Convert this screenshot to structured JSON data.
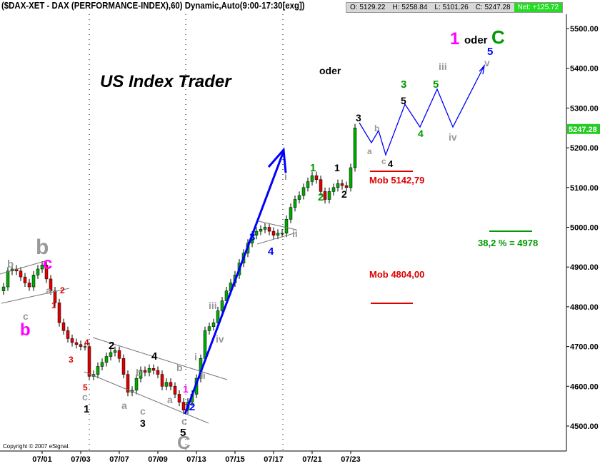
{
  "header": {
    "title": "($DAX-XET - DAX (PERFORMANCE-INDEX),60) Dynamic,Auto(9:00-17:30[exg])",
    "open": "O: 5129.22",
    "high": "H: 5258.84",
    "low": "L: 5101.26",
    "close": "C: 5247.28",
    "net": "Net: +125.72"
  },
  "copyright": "Copyright © 2007 eSignal.",
  "chart_data": {
    "type": "candlestick",
    "interval": "60 min",
    "ylim": [
      4450,
      5560
    ],
    "y_ticks": [
      "5500.00",
      "5400.00",
      "5300.00",
      "5200.00",
      "5100.00",
      "5000.00",
      "4900.00",
      "4800.00",
      "4700.00",
      "4600.00",
      "4500.00"
    ],
    "x_ticks": [
      "07/01",
      "07/03",
      "07/07",
      "07/09",
      "07/13",
      "07/15",
      "07/17",
      "07/21",
      "07/23"
    ],
    "last_price": "5247.28",
    "closes": [
      4850,
      4890,
      4895,
      4890,
      4875,
      4860,
      4850,
      4880,
      4895,
      4905,
      4870,
      4840,
      4810,
      4760,
      4740,
      4720,
      4710,
      4705,
      4700,
      4700,
      4625,
      4630,
      4650,
      4660,
      4675,
      4685,
      4690,
      4670,
      4630,
      4585,
      4590,
      4620,
      4640,
      4635,
      4645,
      4640,
      4630,
      4600,
      4610,
      4600,
      4580,
      4560,
      4540,
      4560,
      4580,
      4620,
      4670,
      4740,
      4750,
      4760,
      4790,
      4815,
      4840,
      4860,
      4880,
      4910,
      4935,
      4960,
      4980,
      4990,
      4995,
      5000,
      4990,
      4980,
      4985,
      4985,
      5020,
      5050,
      5070,
      5080,
      5100,
      5115,
      5130,
      5120,
      5090,
      5070,
      5090,
      5100,
      5110,
      5105,
      5100,
      5150,
      5250
    ],
    "colors": {
      "up": "#00aa00",
      "down": "#dd0000",
      "projection": "#0000ff",
      "mob": "#dd0000",
      "fib": "#009900"
    },
    "annotations": [
      {
        "text": "US Index Trader",
        "color": "#000000"
      },
      {
        "text": "oder",
        "color": "#000000"
      },
      {
        "text": "1",
        "color": "#ff00ff"
      },
      {
        "text": "oder",
        "color": "#000000"
      },
      {
        "text": "C",
        "color": "#009900"
      },
      {
        "text": "5",
        "color": "#0000ff"
      },
      {
        "text": "v",
        "color": "#999999"
      },
      {
        "text": "iii",
        "color": "#999999"
      },
      {
        "text": "3",
        "color": "#009900"
      },
      {
        "text": "5",
        "color": "#000000"
      },
      {
        "text": "5",
        "color": "#009900"
      },
      {
        "text": "4",
        "color": "#009900"
      },
      {
        "text": "iv",
        "color": "#999999"
      },
      {
        "text": "3",
        "color": "#000000"
      },
      {
        "text": "a",
        "color": "#999999"
      },
      {
        "text": "b",
        "color": "#999999"
      },
      {
        "text": "c",
        "color": "#999999"
      },
      {
        "text": "4",
        "color": "#000000"
      },
      {
        "text": "Mob 5142,79",
        "color": "#dd0000"
      },
      {
        "text": "1",
        "color": "#009900"
      },
      {
        "text": "2",
        "color": "#009900"
      },
      {
        "text": "1",
        "color": "#000000"
      },
      {
        "text": "2",
        "color": "#000000"
      },
      {
        "text": "i",
        "color": "#999999"
      },
      {
        "text": "ii",
        "color": "#999999"
      },
      {
        "text": "3",
        "color": "#0000ff"
      },
      {
        "text": "4",
        "color": "#0000ff"
      },
      {
        "text": "38,2 % = 4978",
        "color": "#009900"
      },
      {
        "text": "Mob 4804,00",
        "color": "#dd0000"
      },
      {
        "text": "iii",
        "color": "#999999"
      },
      {
        "text": "iv",
        "color": "#999999"
      },
      {
        "text": "i",
        "color": "#999999"
      },
      {
        "text": "ii",
        "color": "#999999"
      },
      {
        "text": "2",
        "color": "#0000ff"
      },
      {
        "text": "1",
        "color": "#ff00ff"
      },
      {
        "text": "b",
        "color": "#999999"
      },
      {
        "text": "a",
        "color": "#999999"
      },
      {
        "text": "c",
        "color": "#999999"
      },
      {
        "text": "5",
        "color": "#000000"
      },
      {
        "text": "C",
        "color": "#999999"
      },
      {
        "text": "4",
        "color": "#000000"
      },
      {
        "text": "b",
        "color": "#999999"
      },
      {
        "text": "a",
        "color": "#999999"
      },
      {
        "text": "c",
        "color": "#999999"
      },
      {
        "text": "3",
        "color": "#000000"
      },
      {
        "text": "2",
        "color": "#000000"
      },
      {
        "text": "4",
        "color": "#dd0000"
      },
      {
        "text": "3",
        "color": "#dd0000"
      },
      {
        "text": "5",
        "color": "#dd0000"
      },
      {
        "text": "c",
        "color": "#999999"
      },
      {
        "text": "1",
        "color": "#000000"
      },
      {
        "text": "b",
        "color": "#999999"
      },
      {
        "text": "c",
        "color": "#ff00ff"
      },
      {
        "text": "b",
        "color": "#999999"
      },
      {
        "text": "a",
        "color": "#999999"
      },
      {
        "text": "2",
        "color": "#dd0000"
      },
      {
        "text": "1",
        "color": "#dd0000"
      },
      {
        "text": "c",
        "color": "#999999"
      },
      {
        "text": "b",
        "color": "#ff00ff"
      }
    ]
  }
}
